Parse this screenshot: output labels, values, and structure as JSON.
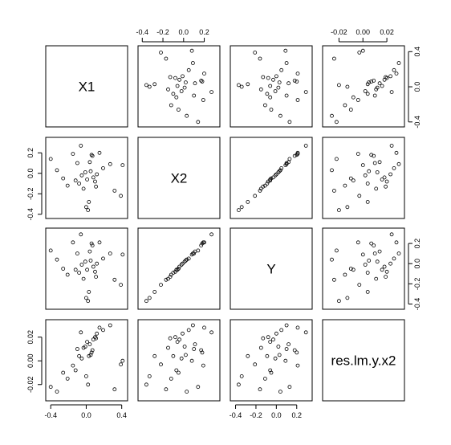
{
  "chart_data": {
    "type": "scatter",
    "layout": "pairs-matrix",
    "title": "",
    "variables": [
      "X1",
      "X2",
      "Y",
      "res.lm.y.x2"
    ],
    "ranges": {
      "X1": [
        -0.42,
        0.43
      ],
      "X2": [
        -0.41,
        0.32
      ],
      "Y": [
        -0.42,
        0.32
      ],
      "res.lm.y.x2": [
        -0.031,
        0.032
      ]
    },
    "ticks": {
      "X1": [
        "-0.4",
        "0.0",
        "0.4"
      ],
      "X1_top": [
        "-0.4",
        "-0.2",
        "0.0",
        "0.2"
      ],
      "X2": [
        "-0.4",
        "-0.2",
        "0.0",
        "0.2"
      ],
      "Y": [
        "-0.4",
        "-0.2",
        "0.0",
        "0.2"
      ],
      "res.lm.y.x2": [
        "-0.02",
        "0.00",
        "0.02"
      ]
    },
    "observations": {
      "X1": [
        -0.4,
        -0.33,
        -0.26,
        -0.21,
        -0.15,
        -0.1,
        -0.08,
        -0.05,
        -0.03,
        -0.01,
        0.01,
        0.03,
        0.05,
        0.07,
        0.08,
        0.1,
        0.12,
        0.15,
        0.19,
        0.27,
        0.32,
        0.39,
        0.41,
        0.02,
        0.0,
        -0.06,
        0.06,
        0.04,
        0.11,
        -0.12
      ],
      "X2": [
        0.14,
        0.03,
        -0.05,
        -0.12,
        0.19,
        0.1,
        -0.1,
        -0.02,
        -0.15,
        0.01,
        -0.06,
        -0.28,
        0.02,
        0.17,
        -0.04,
        -0.08,
        -0.01,
        0.2,
        0.05,
        0.09,
        -0.17,
        -0.22,
        0.08,
        -0.36,
        -0.33,
        0.27,
        0.18,
        0.11,
        -0.13,
        -0.07
      ],
      "Y": [
        0.13,
        0.04,
        -0.05,
        -0.11,
        0.21,
        0.1,
        -0.09,
        -0.01,
        -0.15,
        0.02,
        -0.06,
        -0.28,
        0.03,
        0.18,
        -0.03,
        -0.08,
        0.0,
        0.21,
        0.05,
        0.1,
        -0.16,
        -0.21,
        0.09,
        -0.37,
        -0.34,
        0.29,
        0.2,
        0.12,
        -0.13,
        -0.06
      ],
      "res.lm.y.x2": [
        -0.022,
        -0.026,
        -0.01,
        -0.015,
        -0.004,
        0.01,
        0.004,
        0.002,
        0.011,
        0.012,
        0.016,
        0.004,
        0.005,
        0.009,
        0.018,
        0.02,
        0.023,
        0.028,
        0.026,
        0.03,
        -0.024,
        -0.003,
        0.0,
        -0.02,
        -0.013,
        0.024,
        0.007,
        0.014,
        0.019,
        -0.008
      ]
    }
  }
}
